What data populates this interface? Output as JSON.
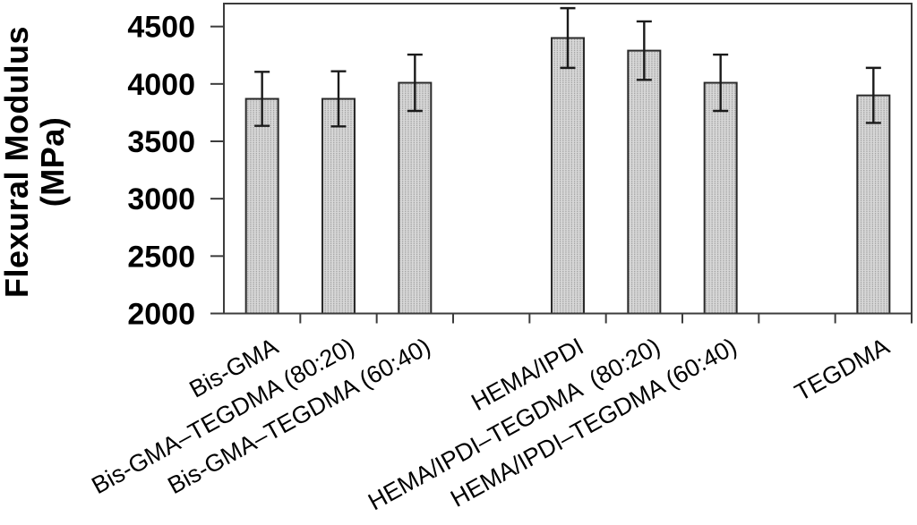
{
  "chart_data": {
    "type": "bar",
    "title": "",
    "ylabel": "Flexural Modulus (MPa)",
    "ylabel_lines": [
      "Flexural Modulus",
      "(MPa)"
    ],
    "xlabel": "",
    "ylim": [
      2000,
      4700
    ],
    "yticks": [
      2000,
      2500,
      3000,
      3500,
      4000,
      4500
    ],
    "grid": false,
    "legend": false,
    "num_slots": 9,
    "categories": [
      "Bis-GMA",
      "Bis-GMA–TEGDMA (80:20)",
      "Bis-GMA–TEGDMA (60:40)",
      "HEMA/IPDI",
      "HEMA/IPDI–TEGDMA  (80:20)",
      "HEMA/IPDI–TEGDMA (60:40)",
      "TEGDMA"
    ],
    "values": [
      3870,
      3870,
      4010,
      4400,
      4290,
      4010,
      3900
    ],
    "error_bars": [
      235,
      240,
      245,
      260,
      255,
      245,
      240
    ],
    "group_slots": [
      1,
      2,
      3,
      5,
      6,
      7,
      9
    ],
    "colors": {
      "background": "#ffffff",
      "bar_fill_base": "#d8d8d8",
      "bar_fill_dots": "#9c9c9c",
      "bar_border": "#2a2a2a",
      "axis": "#3c3c3c",
      "error_bar": "#1a1a1a",
      "text": "#000000"
    }
  }
}
